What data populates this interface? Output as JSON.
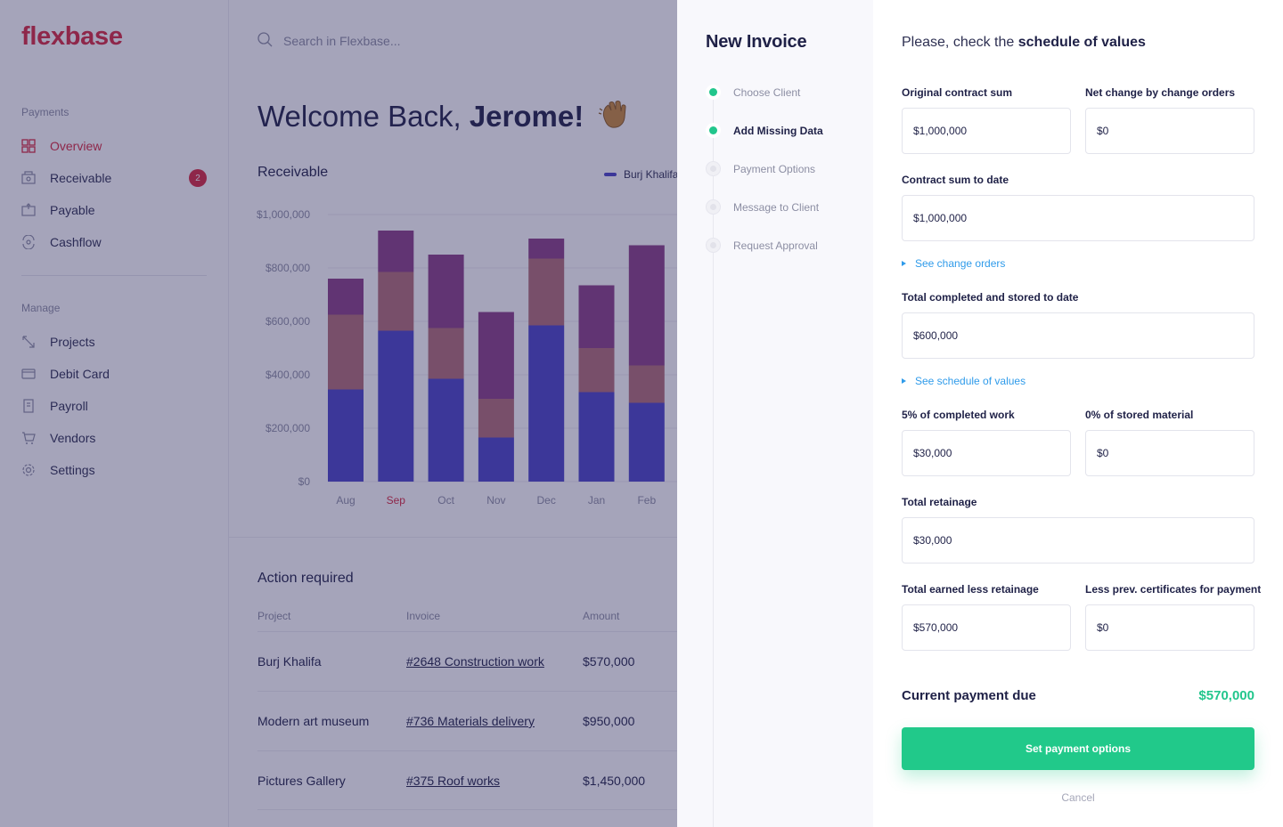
{
  "app": {
    "logo": "flexbase",
    "search_placeholder": "Search in Flexbase...",
    "greeting": "Welcome Back,",
    "user_name": "Jerome!"
  },
  "sidebar": {
    "payments_title": "Payments",
    "payments_items": [
      {
        "label": "Overview",
        "icon": "overview-icon",
        "active": true
      },
      {
        "label": "Receivable",
        "icon": "receivable-icon",
        "badge": "2"
      },
      {
        "label": "Payable",
        "icon": "payable-icon"
      },
      {
        "label": "Cashflow",
        "icon": "cashflow-icon"
      }
    ],
    "manage_title": "Manage",
    "manage_items": [
      {
        "label": "Projects",
        "icon": "projects-icon"
      },
      {
        "label": "Debit Card",
        "icon": "debit-card-icon"
      },
      {
        "label": "Payroll",
        "icon": "payroll-icon"
      },
      {
        "label": "Vendors",
        "icon": "vendors-icon"
      },
      {
        "label": "Settings",
        "icon": "settings-icon"
      }
    ]
  },
  "receivable": {
    "title": "Receivable",
    "legend": [
      "Burj Khalifa"
    ]
  },
  "chart_data": {
    "type": "bar",
    "stacked": true,
    "title": "Receivable",
    "categories": [
      "Aug",
      "Sep",
      "Oct",
      "Nov",
      "Dec",
      "Jan",
      "Feb"
    ],
    "highlighted_category": "Sep",
    "y_ticks": [
      "$1,000,000",
      "$800,000",
      "$600,000",
      "$400,000",
      "$200,000",
      "$0"
    ],
    "ylim": [
      0,
      1000000
    ],
    "grid": true,
    "legend_position": "top-right",
    "series": [
      {
        "name": "Burj Khalifa",
        "color": "#4a44c6",
        "values": [
          345000,
          565000,
          385000,
          165000,
          585000,
          335000,
          295000
        ]
      },
      {
        "color": "#b26d76",
        "values": [
          280000,
          220000,
          190000,
          145000,
          250000,
          165000,
          140000
        ]
      },
      {
        "color": "#8a3f86",
        "values": [
          135000,
          155000,
          275000,
          325000,
          75000,
          235000,
          450000
        ]
      }
    ]
  },
  "action_required": {
    "title": "Action required",
    "columns": [
      "Project",
      "Invoice",
      "Amount"
    ],
    "rows": [
      {
        "project": "Burj Khalifa",
        "invoice": "#2648 Construction work",
        "amount": "$570,000"
      },
      {
        "project": "Modern art museum",
        "invoice": "#736 Materials delivery",
        "amount": "$950,000"
      },
      {
        "project": "Pictures Gallery",
        "invoice": "#375 Roof works",
        "amount": "$1,450,000"
      }
    ]
  },
  "invoice": {
    "title": "New Invoice",
    "steps": [
      {
        "label": "Choose Client",
        "state": "done"
      },
      {
        "label": "Add Missing Data",
        "state": "current"
      },
      {
        "label": "Payment Options",
        "state": "todo"
      },
      {
        "label": "Message to Client",
        "state": "todo"
      },
      {
        "label": "Request Approval",
        "state": "todo"
      }
    ],
    "heading_prefix": "Please, check the",
    "heading_bold": "schedule of values",
    "fields": {
      "original_contract_sum": {
        "label": "Original contract sum",
        "value": "$1,000,000"
      },
      "net_change": {
        "label": "Net change by change orders",
        "value": "$0"
      },
      "contract_sum_to_date": {
        "label": "Contract sum to date",
        "value": "$1,000,000"
      },
      "total_completed": {
        "label": "Total completed and stored to date",
        "value": "$600,000"
      },
      "completed_work_pct": {
        "label": "5% of completed work",
        "value": "$30,000"
      },
      "stored_material_pct": {
        "label": "0% of stored material",
        "value": "$0"
      },
      "total_retainage": {
        "label": "Total retainage",
        "value": "$30,000"
      },
      "earned_less_retainage": {
        "label": "Total earned less retainage",
        "value": "$570,000"
      },
      "less_prev_certificates": {
        "label": "Less prev. certificates for payment",
        "value": "$0"
      }
    },
    "see_change_orders": "See change orders",
    "see_schedule_of_values": "See schedule of values",
    "current_payment_label": "Current payment due",
    "current_payment_value": "$570,000",
    "primary_button": "Set payment options",
    "cancel": "Cancel"
  }
}
